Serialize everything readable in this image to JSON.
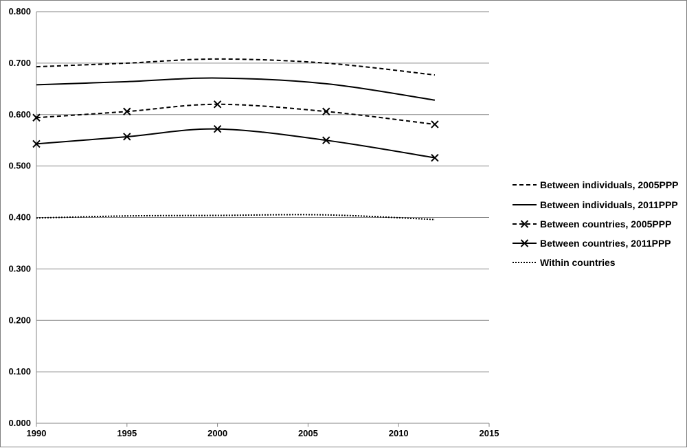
{
  "chart_data": {
    "type": "line",
    "title": "",
    "xlabel": "",
    "ylabel": "",
    "xlim": [
      1990,
      2015
    ],
    "ylim": [
      0,
      0.8
    ],
    "x_ticks": [
      "1990",
      "1995",
      "2000",
      "2005",
      "2010",
      "2015"
    ],
    "y_ticks": [
      "0.000",
      "0.100",
      "0.200",
      "0.300",
      "0.400",
      "0.500",
      "0.600",
      "0.700",
      "0.800"
    ],
    "grid": "horizontal",
    "legend_position": "right",
    "series": [
      {
        "name": "Between individuals, 2005PPP",
        "style": "dashed",
        "marker": "none",
        "color": "#000000",
        "x": [
          1990,
          1995,
          2000,
          2006,
          2012
        ],
        "values": [
          0.693,
          0.7,
          0.708,
          0.7,
          0.677
        ]
      },
      {
        "name": "Between individuals, 2011PPP",
        "style": "solid",
        "marker": "none",
        "color": "#000000",
        "x": [
          1990,
          1995,
          2000,
          2006,
          2012
        ],
        "values": [
          0.658,
          0.664,
          0.671,
          0.66,
          0.628
        ]
      },
      {
        "name": "Between countries, 2005PPP",
        "style": "dashed",
        "marker": "x",
        "color": "#000000",
        "x": [
          1990,
          1995,
          2000,
          2006,
          2012
        ],
        "values": [
          0.594,
          0.606,
          0.62,
          0.606,
          0.581
        ]
      },
      {
        "name": "Between countries, 2011PPP",
        "style": "solid",
        "marker": "x",
        "color": "#000000",
        "x": [
          1990,
          1995,
          2000,
          2006,
          2012
        ],
        "values": [
          0.543,
          0.557,
          0.572,
          0.55,
          0.516
        ]
      },
      {
        "name": "Within countries",
        "style": "dotted",
        "marker": "none",
        "color": "#000000",
        "x": [
          1990,
          1995,
          2000,
          2006,
          2012
        ],
        "values": [
          0.399,
          0.403,
          0.404,
          0.405,
          0.396
        ]
      }
    ]
  }
}
